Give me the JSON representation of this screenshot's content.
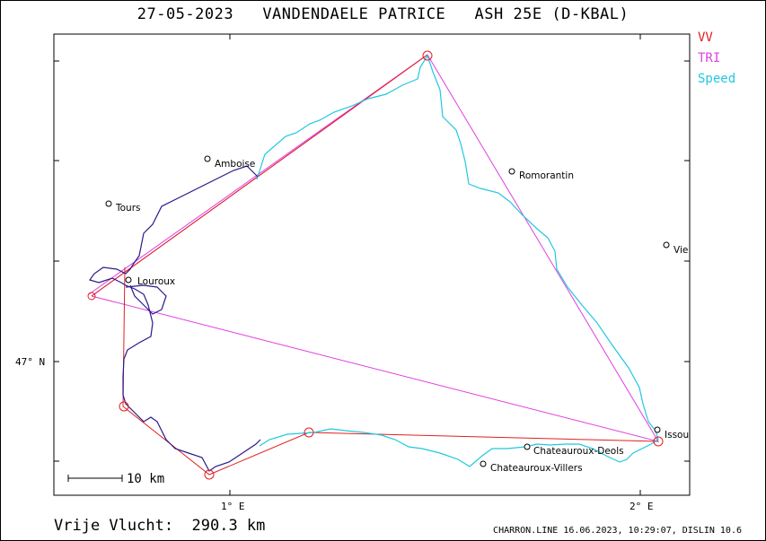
{
  "header": {
    "date": "27-05-2023",
    "pilot": "VANDENDAELE PATRICE",
    "glider": "ASH 25E (D-KBAL)"
  },
  "legend": {
    "items": [
      {
        "label": "VV",
        "color": "#e02020"
      },
      {
        "label": "TRI",
        "color": "#e040e0"
      },
      {
        "label": "Speed",
        "color": "#20c8e0"
      }
    ]
  },
  "axes": {
    "y_tick_label": "47° N",
    "x_tick_labels": [
      "1° E",
      "2° E"
    ]
  },
  "places": [
    {
      "name": "Amboise"
    },
    {
      "name": "Tours"
    },
    {
      "name": "Romorantin"
    },
    {
      "name": "Vie"
    },
    {
      "name": "Louroux"
    },
    {
      "name": "Issou"
    },
    {
      "name": "Chateauroux-Deols"
    },
    {
      "name": "Chateauroux-Villers"
    }
  ],
  "scale_bar": {
    "label": "10  km"
  },
  "footer": {
    "distance_text": "Vrije Vlucht:  290.3 km",
    "credits": "CHARRON.LINE 16.06.2023, 10:29:07, DISLIN 10.6"
  },
  "colors": {
    "track_dark": "#2a1a8a",
    "track_speed": "#20c8e0",
    "vv": "#e02020",
    "tri": "#e040e0"
  }
}
